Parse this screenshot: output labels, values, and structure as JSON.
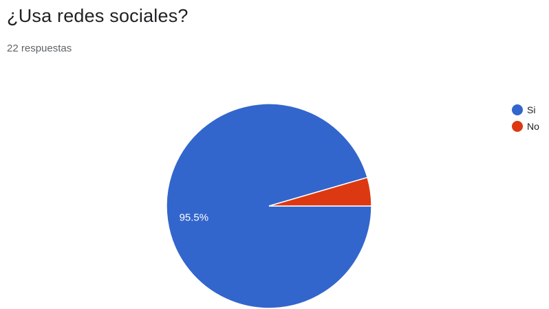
{
  "header": {
    "title": "¿Usa redes sociales?",
    "subtitle": "22 respuestas"
  },
  "chart_data": {
    "type": "pie",
    "title": "¿Usa redes sociales?",
    "subtitle": "22 respuestas",
    "categories": [
      "Si",
      "No"
    ],
    "values": [
      95.5,
      4.5
    ],
    "counts": [
      21,
      1
    ],
    "colors": [
      "#3366cc",
      "#dc3912"
    ],
    "data_labels": [
      "95.5%",
      ""
    ],
    "legend_position": "right"
  }
}
